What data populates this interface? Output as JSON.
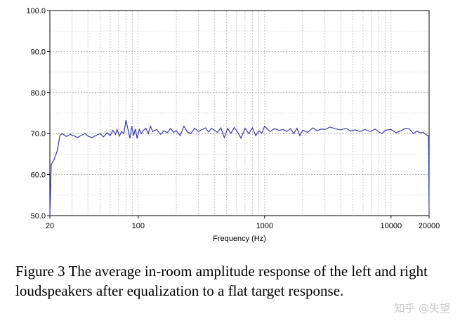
{
  "chart_data": {
    "type": "line",
    "xlabel": "Frequency (Hz)",
    "ylabel": "",
    "xscale": "log",
    "xlim": [
      20,
      20000
    ],
    "ylim": [
      50,
      100
    ],
    "x_ticks": [
      20,
      100,
      1000,
      10000,
      20000
    ],
    "x_tick_labels": [
      "20",
      "100",
      "1000",
      "10000",
      "20000"
    ],
    "y_ticks": [
      50,
      60,
      70,
      80,
      90,
      100
    ],
    "y_tick_labels": [
      "50.0",
      "60.0",
      "70.0",
      "80.0",
      "90.0",
      "100.0"
    ],
    "grid": true,
    "line_color": "#3a3aa8",
    "series": [
      {
        "x": [
          20,
          20.5,
          21.5,
          23,
          24,
          25,
          27,
          29,
          31,
          33,
          35,
          38,
          40,
          43,
          46,
          50,
          53,
          57,
          60,
          63,
          66,
          68,
          71,
          74,
          77,
          80,
          83,
          86,
          89,
          92,
          95,
          98,
          102,
          106,
          110,
          115,
          120,
          125,
          130,
          140,
          150,
          160,
          170,
          180,
          190,
          200,
          215,
          230,
          245,
          260,
          280,
          300,
          320,
          340,
          360,
          380,
          400,
          425,
          450,
          480,
          510,
          540,
          575,
          610,
          650,
          700,
          750,
          800,
          850,
          900,
          950,
          1000,
          1100,
          1200,
          1300,
          1400,
          1500,
          1600,
          1700,
          1800,
          1900,
          2000,
          2200,
          2400,
          2600,
          2800,
          3000,
          3300,
          3600,
          4000,
          4400,
          4800,
          5200,
          5700,
          6200,
          6800,
          7500,
          8000,
          8500,
          9000,
          10000,
          11000,
          12000,
          13000,
          14000,
          15000,
          16000,
          17000,
          18000,
          19000,
          19800,
          20000
        ],
        "y": [
          50,
          62.5,
          63.5,
          66,
          69.5,
          70,
          69.3,
          69.8,
          69.5,
          69.0,
          69.5,
          70.0,
          69.4,
          69.0,
          69.5,
          70.0,
          69.2,
          70.2,
          69.5,
          70.8,
          69.8,
          71.0,
          69.4,
          70.5,
          70.0,
          73.3,
          71.0,
          68.8,
          71.8,
          69.5,
          71.2,
          68.8,
          71.0,
          70.0,
          70.8,
          71.3,
          70.0,
          71.8,
          70.5,
          71.0,
          69.8,
          70.7,
          70.2,
          71.3,
          70.3,
          70.7,
          69.5,
          71.8,
          70.4,
          70.0,
          71.3,
          70.5,
          71.0,
          71.4,
          70.4,
          71.3,
          70.8,
          70.3,
          71.4,
          69.0,
          71.3,
          70.0,
          71.5,
          70.4,
          68.9,
          71.3,
          70.0,
          71.4,
          69.5,
          70.7,
          70.1,
          71.8,
          70.5,
          71.2,
          70.8,
          71.0,
          70.5,
          71.2,
          70.0,
          71.3,
          69.5,
          70.8,
          70.3,
          71.4,
          70.7,
          71.1,
          71.0,
          71.6,
          71.2,
          70.9,
          71.3,
          70.6,
          70.9,
          70.5,
          71.0,
          70.5,
          71.1,
          70.4,
          70.0,
          70.8,
          71.0,
          70.2,
          70.7,
          71.3,
          71.1,
          70.0,
          70.6,
          70.2,
          70.3,
          69.7,
          69.4,
          50
        ]
      }
    ]
  },
  "caption": "Figure 3 The average in-room amplitude response of the left and right loudspeakers after equalization to a flat target response.",
  "watermark": "知乎 @失望"
}
